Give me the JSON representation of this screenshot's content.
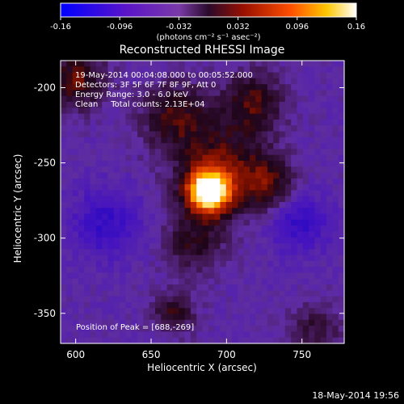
{
  "chart_data": {
    "type": "heatmap",
    "title": "Reconstructed RHESSI Image",
    "xlabel": "Heliocentric X (arcsec)",
    "ylabel": "Heliocentric Y (arcsec)",
    "xlim": [
      590,
      778
    ],
    "ylim": [
      -370,
      -182
    ],
    "x_ticks": [
      600,
      650,
      700,
      750
    ],
    "y_ticks": [
      -200,
      -250,
      -300,
      -350
    ],
    "colorbar": {
      "ticks": [
        "-0.16",
        "-0.096",
        "-0.032",
        "0.032",
        "0.096",
        "0.16"
      ],
      "range": [
        -0.16,
        0.16
      ],
      "unit_label": "(photons cm⁻² s⁻¹ asec⁻²)",
      "colors": [
        "#0000ff",
        "#5a14c8",
        "#7a3aa8",
        "#3a0a3a",
        "#aa1400",
        "#ff5a00",
        "#ffc800",
        "#ffffff"
      ]
    },
    "info": {
      "line1": "19-May-2014 00:04:08.000 to 00:05:52.000",
      "line2": "Detectors: 3F 5F 6F 7F 8F 9F, Att 0",
      "line3": "Energy Range: 3.0 - 6.0 keV",
      "line4": "Clean     Total counts: 2.13E+04"
    },
    "peak_label": "Position of Peak = [688,-269]",
    "peak": [
      688,
      -269
    ]
  },
  "footer": "18-May-2014 19:56"
}
